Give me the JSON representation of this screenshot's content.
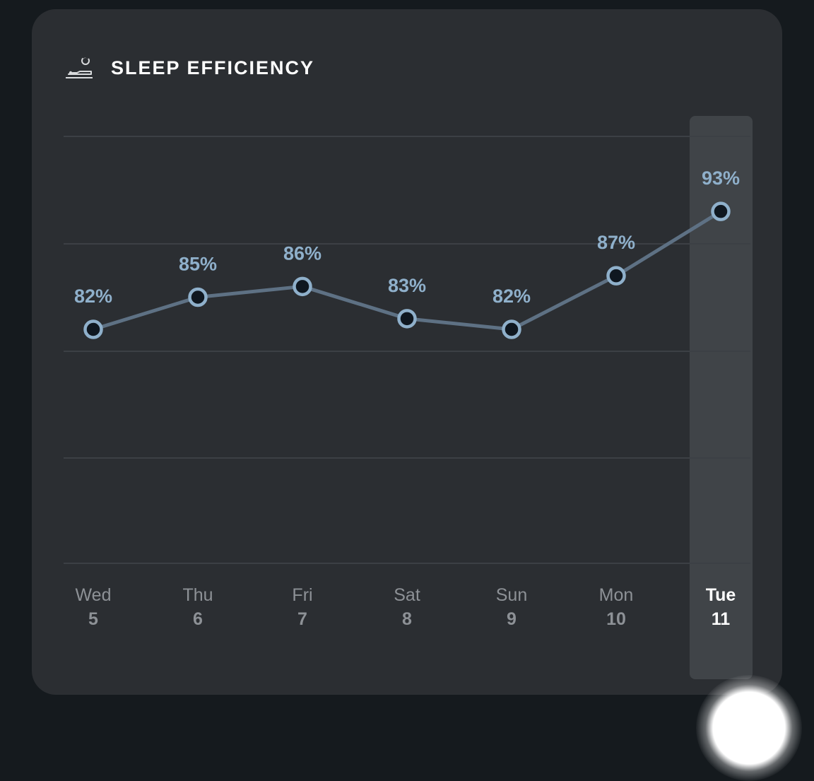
{
  "card": {
    "title": "SLEEP EFFICIENCY",
    "icon": "sleep-icon"
  },
  "colors": {
    "background": "#151a1e",
    "card": "#2b2e32",
    "gridline": "#3c4045",
    "line": "#5e7184",
    "point_fill": "#0f1720",
    "point_stroke": "#8fb0cb",
    "value_label": "#8fb0cb",
    "day_label": "#8d9196",
    "selected_day_label": "#ffffff",
    "selected_band": "#404448"
  },
  "chart_data": {
    "type": "line",
    "categories": [
      "Wed 5",
      "Thu 6",
      "Fri 7",
      "Sat 8",
      "Sun 9",
      "Mon 10",
      "Tue 11"
    ],
    "day_names": [
      "Wed",
      "Thu",
      "Fri",
      "Sat",
      "Sun",
      "Mon",
      "Tue"
    ],
    "day_numbers": [
      "5",
      "6",
      "7",
      "8",
      "9",
      "10",
      "11"
    ],
    "values": [
      82,
      85,
      86,
      83,
      82,
      87,
      93
    ],
    "value_labels": [
      "82%",
      "85%",
      "86%",
      "83%",
      "82%",
      "87%",
      "93%"
    ],
    "ylim": [
      70,
      100
    ],
    "grid": true,
    "selected_index": 6
  }
}
